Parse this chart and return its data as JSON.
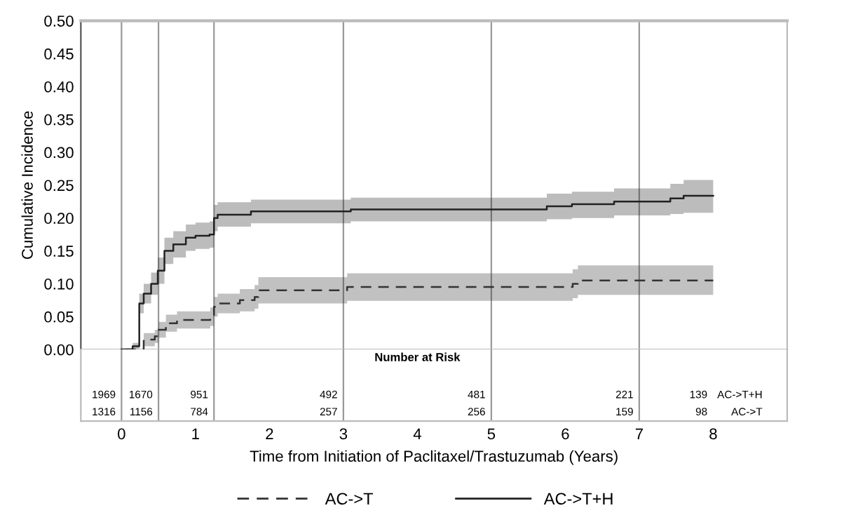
{
  "chart_data": [
    {
      "type": "step",
      "ylabel": "Cumulative Incidence",
      "xlim": [
        -0.55,
        9.0
      ],
      "ylim": [
        0,
        0.5
      ],
      "yticks": [
        {
          "value": 0,
          "label": "0.00"
        },
        {
          "value": 0.05,
          "label": "0.05"
        },
        {
          "value": 0.1,
          "label": "0.10"
        },
        {
          "value": 0.15,
          "label": "0.15"
        },
        {
          "value": 0.2,
          "label": "0.20"
        },
        {
          "value": 0.25,
          "label": "0.25"
        },
        {
          "value": 0.3,
          "label": "0.30"
        },
        {
          "value": 0.35,
          "label": "0.35"
        },
        {
          "value": 0.4,
          "label": "0.40"
        },
        {
          "value": 0.45,
          "label": "0.45"
        },
        {
          "value": 0.5,
          "label": "0.50"
        }
      ],
      "xticks": [
        0,
        1,
        2,
        3,
        4,
        5,
        6,
        7,
        8
      ],
      "xlabel": "Time from Initiation of Paclitaxel/Trastuzumab (Years)",
      "legend": "bottom",
      "grid": false,
      "ref_lines": [
        {
          "axis": "x",
          "value": 0,
          "color": "#999999"
        },
        {
          "axis": "x",
          "value": 0.5,
          "color": "#999999"
        },
        {
          "axis": "x",
          "value": 1.25,
          "color": "#999999"
        },
        {
          "axis": "x",
          "value": 3,
          "color": "#999999"
        },
        {
          "axis": "x",
          "value": 5,
          "color": "#999999"
        },
        {
          "axis": "x",
          "value": 7,
          "color": "#999999"
        }
      ],
      "series": [
        {
          "name": "AC->T",
          "color": "#333333",
          "line_style": "dashed",
          "x": [
            0.05,
            0.3,
            0.45,
            0.5,
            0.6,
            0.75,
            1.2,
            1.25,
            1.3,
            1.6,
            1.8,
            1.85,
            3.0,
            3.05,
            5.9,
            6.1,
            6.17,
            8.0
          ],
          "values": [
            0,
            0.015,
            0.02,
            0.03,
            0.04,
            0.045,
            0.05,
            0.065,
            0.07,
            0.075,
            0.08,
            0.09,
            0.09,
            0.095,
            0.095,
            0.1,
            0.105,
            0.105
          ],
          "lower": [
            0,
            0.005,
            0.01,
            0.018,
            0.027,
            0.032,
            0.036,
            0.05,
            0.055,
            0.058,
            0.062,
            0.07,
            0.07,
            0.074,
            0.074,
            0.078,
            0.083,
            0.083
          ],
          "upper": [
            0,
            0.025,
            0.03,
            0.042,
            0.053,
            0.058,
            0.064,
            0.08,
            0.085,
            0.092,
            0.098,
            0.11,
            0.11,
            0.116,
            0.116,
            0.122,
            0.128,
            0.128
          ]
        },
        {
          "name": "AC->T+H",
          "color": "#222222",
          "line_style": "solid",
          "x": [
            0,
            0.15,
            0.24,
            0.3,
            0.4,
            0.49,
            0.58,
            0.7,
            0.87,
            1.0,
            1.19,
            1.25,
            1.3,
            1.75,
            3.0,
            3.1,
            5.75,
            6.09,
            6.66,
            7.42,
            7.6,
            8.0
          ],
          "values": [
            0,
            0.005,
            0.07,
            0.085,
            0.1,
            0.12,
            0.15,
            0.16,
            0.17,
            0.173,
            0.175,
            0.2,
            0.205,
            0.21,
            0.21,
            0.213,
            0.218,
            0.221,
            0.225,
            0.23,
            0.234,
            0.234
          ],
          "lower": [
            0,
            0,
            0.055,
            0.07,
            0.083,
            0.1,
            0.13,
            0.14,
            0.15,
            0.153,
            0.155,
            0.18,
            0.187,
            0.192,
            0.192,
            0.195,
            0.198,
            0.2,
            0.204,
            0.206,
            0.208,
            0.208
          ],
          "upper": [
            0,
            0.01,
            0.085,
            0.1,
            0.117,
            0.14,
            0.17,
            0.18,
            0.19,
            0.193,
            0.195,
            0.22,
            0.224,
            0.228,
            0.228,
            0.231,
            0.237,
            0.24,
            0.245,
            0.252,
            0.258,
            0.258
          ]
        }
      ]
    },
    {
      "type": "other",
      "title": "Number at Risk",
      "y_categories": [
        "AC->T+H",
        "AC->T"
      ],
      "annotations": [
        "1969",
        "1670",
        "951",
        "492",
        "481",
        "221",
        "139",
        "1316",
        "1156",
        "784",
        "257",
        "256",
        "159",
        "98"
      ]
    }
  ]
}
